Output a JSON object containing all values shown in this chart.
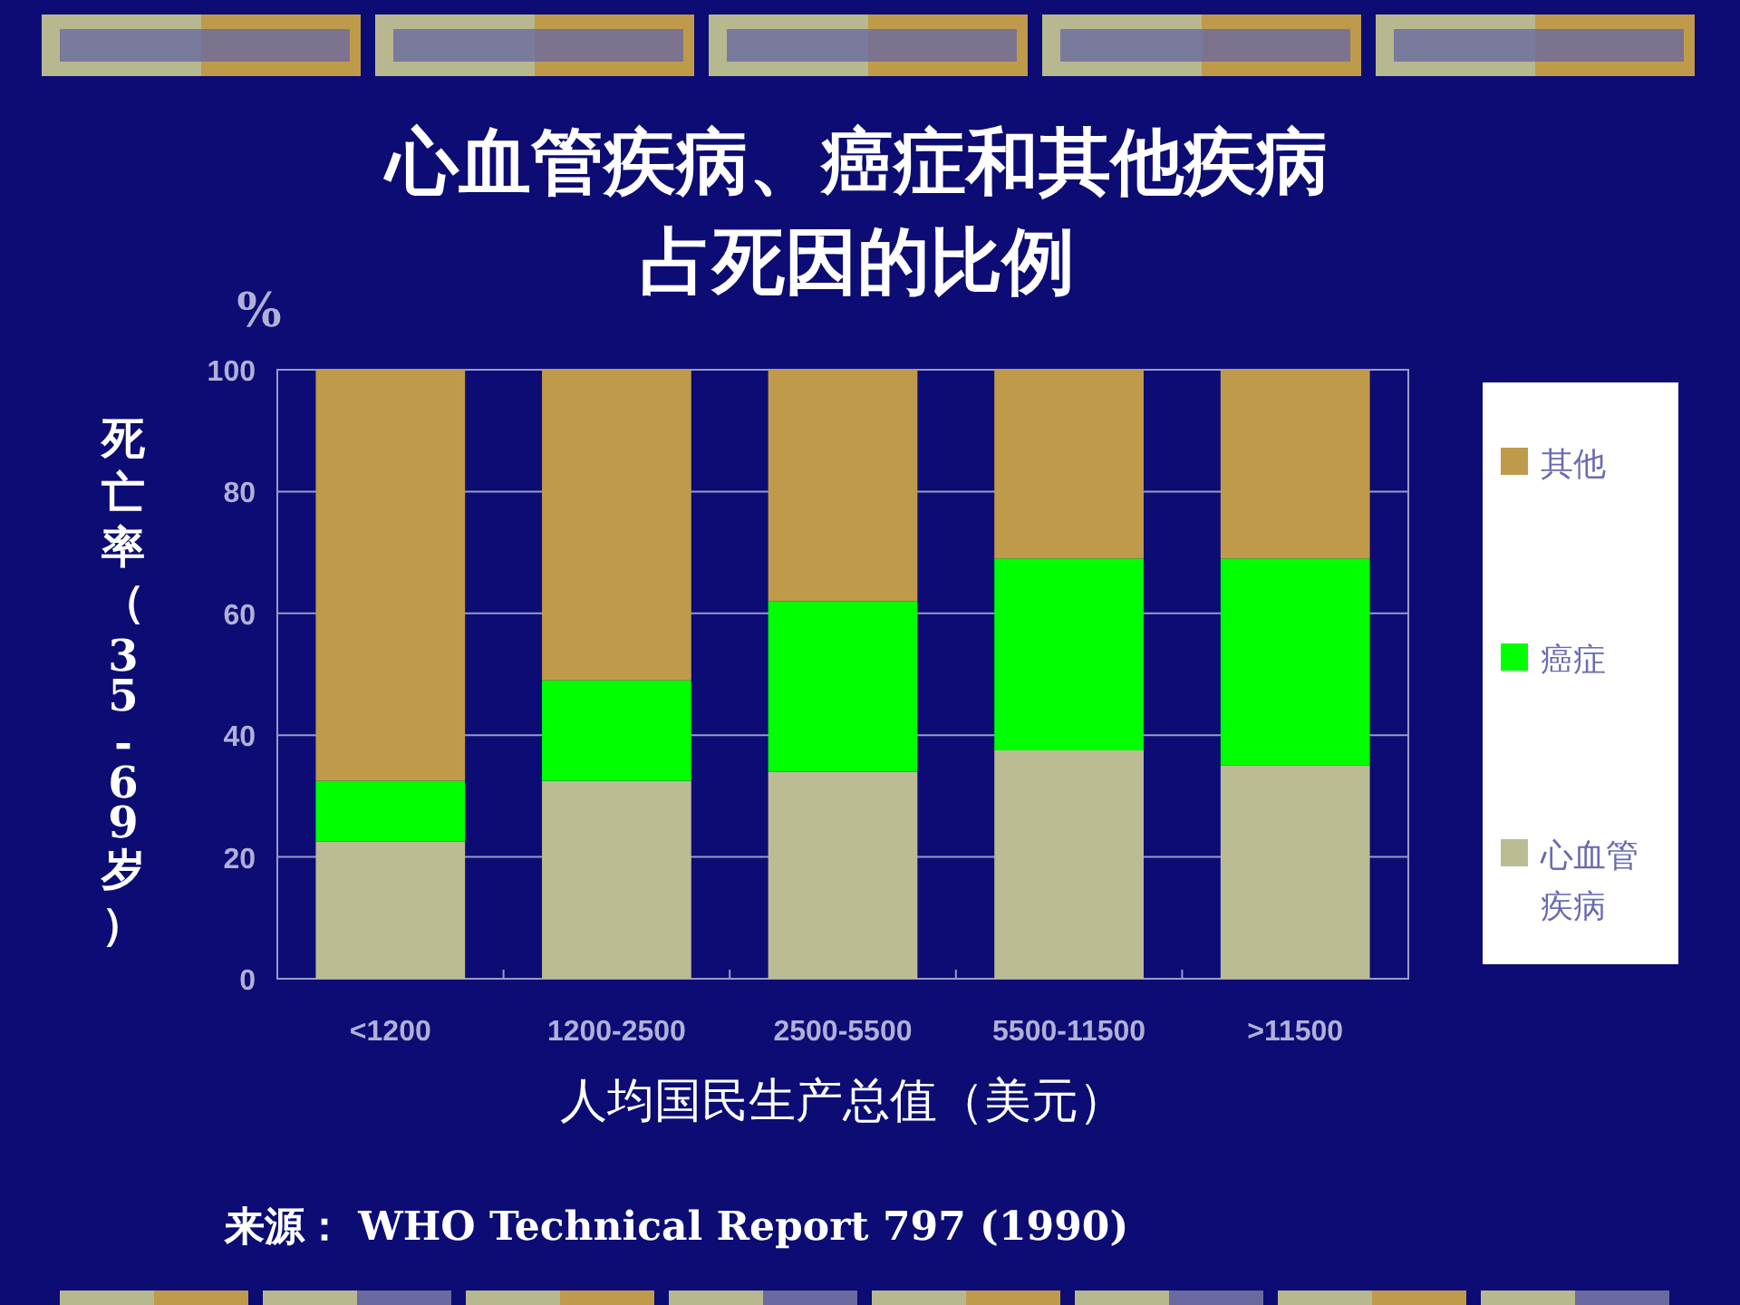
{
  "chart_data": {
    "type": "bar",
    "stacked": true,
    "title": "心血管疾病、癌症和其他疾病占死因的比例",
    "xlabel": "人均国民生产总值（美元）",
    "ylabel": "死亡率（35 -69 岁）",
    "categories": [
      "<1200",
      "1200-2500",
      "2500-5500",
      "5500-11500",
      ">11500"
    ],
    "series": [
      {
        "name": "心血管疾病",
        "color": "#bcbc94",
        "values": [
          22.5,
          32.5,
          34,
          37.5,
          35
        ]
      },
      {
        "name": "癌症",
        "color": "#00ff00",
        "values": [
          10,
          16.5,
          28,
          31.5,
          34
        ]
      },
      {
        "name": "其他",
        "color": "#c09a4b",
        "values": [
          67.5,
          51,
          38,
          31,
          31
        ]
      }
    ],
    "ylim": [
      0,
      100
    ],
    "yticks": [
      0,
      20,
      40,
      60,
      80,
      100
    ],
    "grid": "y",
    "legend": "right",
    "annotations": [
      "%",
      "来源： WHO Technical Report 797 (1990)"
    ]
  }
}
